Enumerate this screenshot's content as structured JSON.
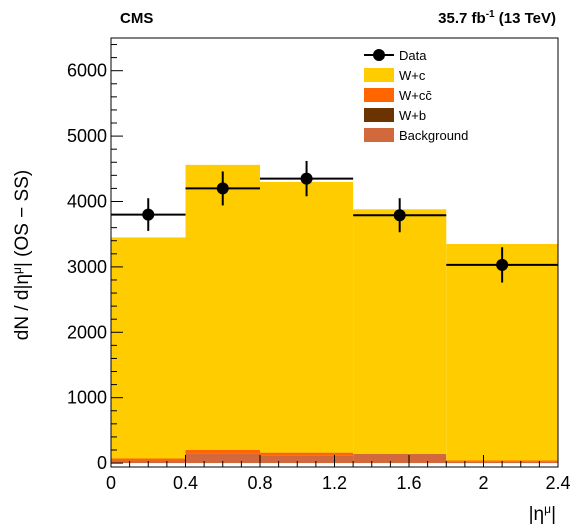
{
  "header": {
    "experiment": "CMS",
    "lumi_prefix": "35.7 fb",
    "lumi_exp": "-1",
    "lumi_suffix": " (13 TeV)"
  },
  "axes": {
    "ylabel_pre": "dN / d|η",
    "ylabel_sup": "μ",
    "ylabel_post": "| (OS − SS)",
    "xlabel_pre": "|η",
    "xlabel_sup": "μ",
    "xlabel_post": "|"
  },
  "colors": {
    "wc": "#ffcc00",
    "wcc": "#ff6600",
    "wb": "#6b3300",
    "background": "#d2693c",
    "data": "#000000"
  },
  "chart_data": {
    "type": "bar",
    "stacked": true,
    "bin_edges": [
      0,
      0.4,
      0.8,
      1.3,
      1.8,
      2.4
    ],
    "xlim": [
      0,
      2.4
    ],
    "ylim": [
      -60,
      6500
    ],
    "xticks": [
      0,
      0.4,
      0.8,
      1.2,
      1.6,
      2,
      2.4
    ],
    "xtick_labels": [
      "0",
      "0.4",
      "0.8",
      "1.2",
      "1.6",
      "2",
      "2.4"
    ],
    "yticks": [
      0,
      1000,
      2000,
      3000,
      4000,
      5000,
      6000
    ],
    "ytick_labels": [
      "0",
      "1000",
      "2000",
      "3000",
      "4000",
      "5000",
      "6000"
    ],
    "series": [
      {
        "name": "Background",
        "color_key": "background",
        "values": [
          40,
          140,
          110,
          140,
          20
        ]
      },
      {
        "name": "W+b",
        "color_key": "wb",
        "values": [
          0,
          0,
          0,
          0,
          0
        ]
      },
      {
        "name": "W+cc̄",
        "color_key": "wcc",
        "values": [
          30,
          60,
          50,
          0,
          20
        ]
      },
      {
        "name": "W+c",
        "color_key": "wc",
        "values": [
          3380,
          4360,
          4140,
          3740,
          3310
        ]
      }
    ],
    "data_points": {
      "name": "Data",
      "x": [
        0.2,
        0.6,
        1.05,
        1.55,
        2.1
      ],
      "y": [
        3800,
        4200,
        4350,
        3790,
        3030
      ],
      "yerr": [
        250,
        260,
        270,
        260,
        270
      ]
    },
    "legend": {
      "placement": "top-right",
      "entries": [
        {
          "label": "Data",
          "kind": "marker"
        },
        {
          "label": "W+c",
          "kind": "fill",
          "color_key": "wc"
        },
        {
          "label": "W+cc̄",
          "kind": "fill",
          "color_key": "wcc"
        },
        {
          "label": "W+b",
          "kind": "fill",
          "color_key": "wb"
        },
        {
          "label": "Background",
          "kind": "fill",
          "color_key": "background"
        }
      ]
    }
  }
}
